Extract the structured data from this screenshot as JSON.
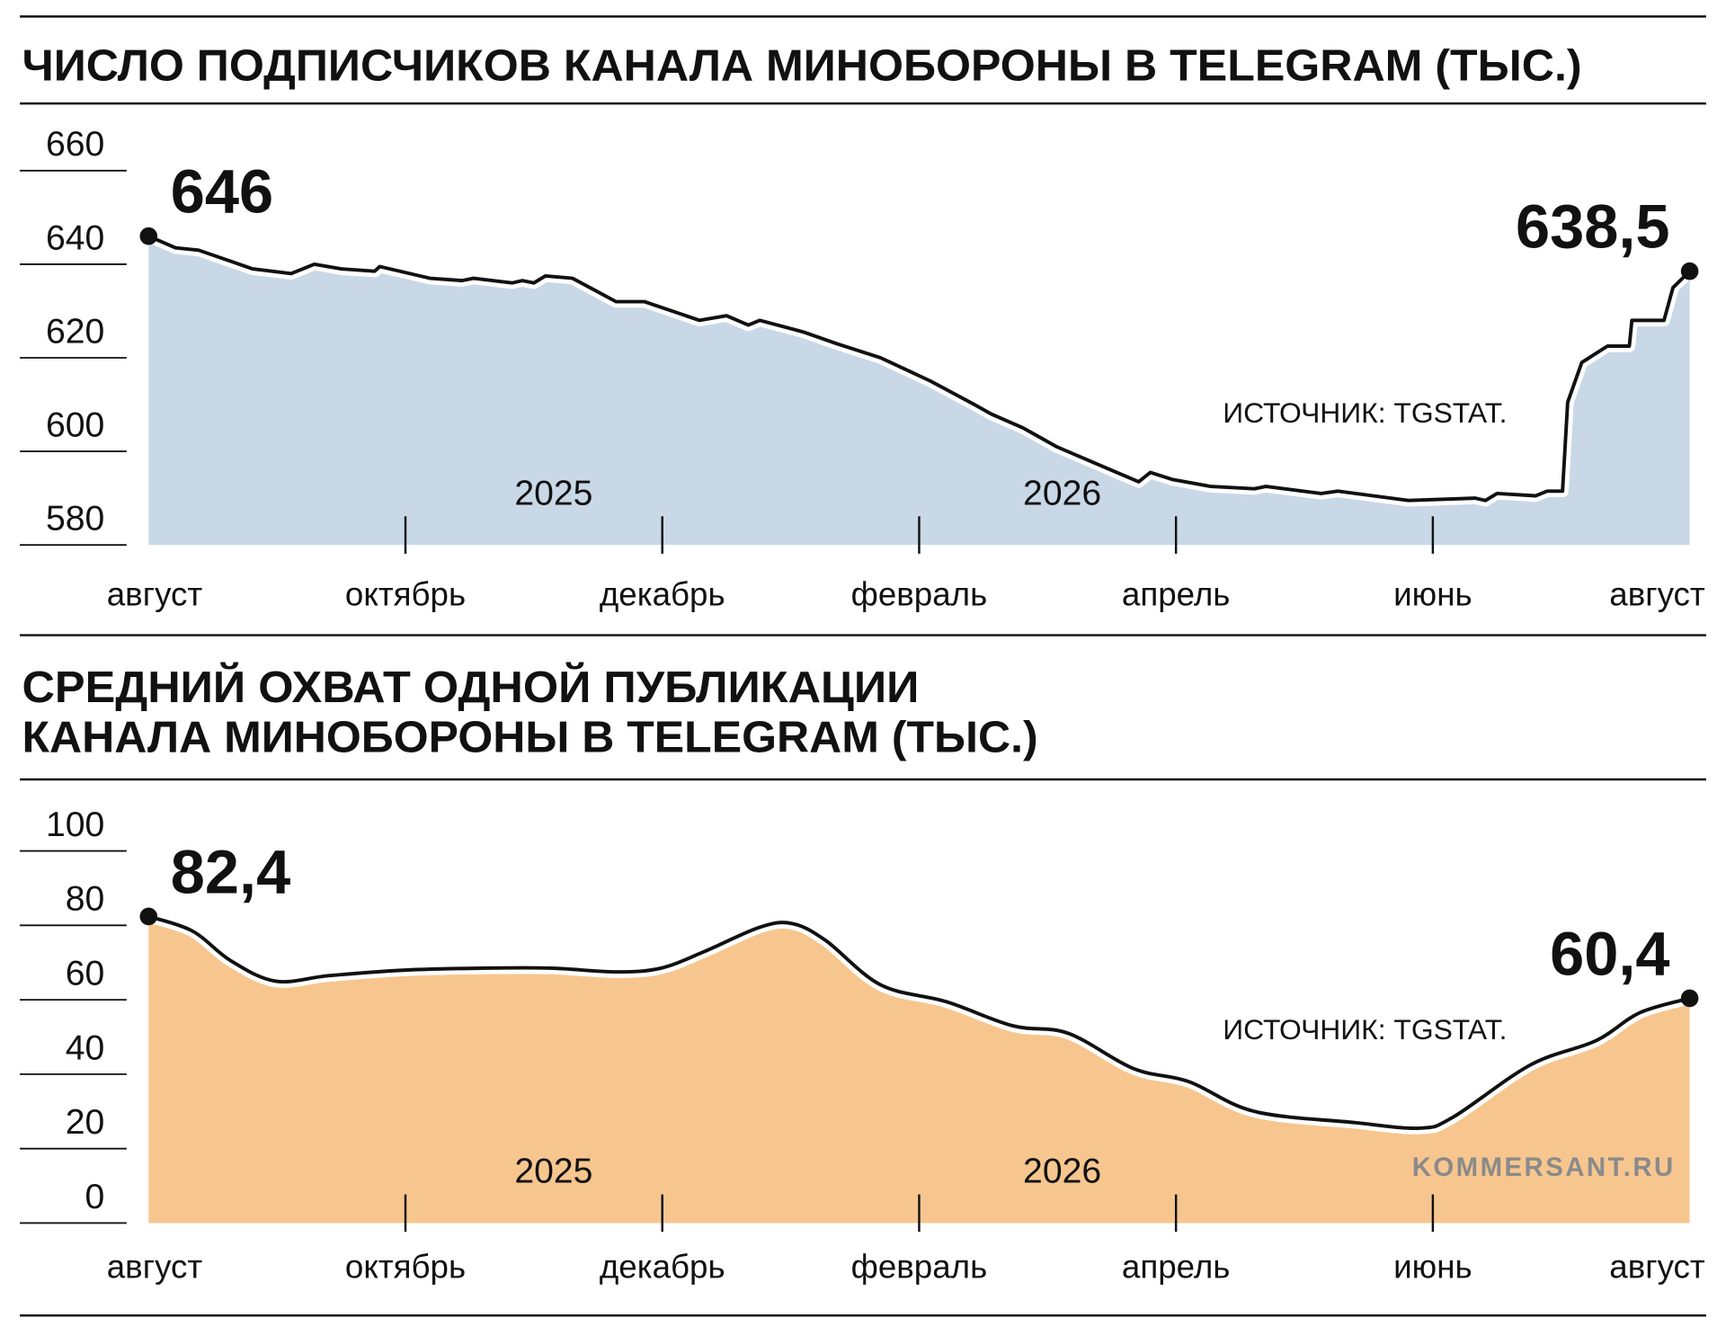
{
  "chart_data": [
    {
      "type": "area",
      "title": [
        "ЧИСЛО ПОДПИСЧИКОВ КАНАЛА МИНОБОРОНЫ В TELEGRAM (ТЫС.)"
      ],
      "x": [
        0,
        0.21,
        0.39,
        0.81,
        1.11,
        1.29,
        1.5,
        1.76,
        1.8,
        2.19,
        2.44,
        2.53,
        2.83,
        2.91,
        3.0,
        3.09,
        3.3,
        3.47,
        3.64,
        3.86,
        4.29,
        4.5,
        4.67,
        4.76,
        5.1,
        5.36,
        5.7,
        6.09,
        6.43,
        6.56,
        6.81,
        7.07,
        7.41,
        7.71,
        7.8,
        7.97,
        8.27,
        8.61,
        8.7,
        9.13,
        9.26,
        9.81,
        10.33,
        10.41,
        10.5,
        10.8,
        10.89,
        11.01,
        11.05,
        11.16,
        11.36,
        11.53,
        11.55,
        11.8,
        11.87,
        12
      ],
      "series": [
        {
          "color": "#c9d8e6",
          "line_color": "#111111",
          "values": [
            646,
            643.5,
            643,
            639,
            638,
            640,
            639,
            638.5,
            639.5,
            637,
            636.5,
            637,
            636,
            636.5,
            636,
            637.5,
            637,
            634.5,
            632,
            632,
            628,
            629,
            627,
            628,
            625.5,
            623,
            620,
            615,
            610,
            608,
            605,
            601,
            597,
            593.5,
            595.5,
            594,
            592.5,
            592,
            592.5,
            591,
            591.5,
            589.5,
            590,
            589.5,
            591,
            590.5,
            591.5,
            591.5,
            610.5,
            619,
            622.5,
            622.5,
            628,
            628,
            635,
            638.5
          ],
          "value_labels": [
            "646",
            null,
            null,
            null,
            null,
            null,
            null,
            null,
            null,
            null,
            null,
            null,
            null,
            null,
            null,
            null,
            null,
            null,
            null,
            null,
            null,
            null,
            null,
            null,
            null,
            null,
            null,
            null,
            null,
            null,
            null,
            null,
            null,
            null,
            null,
            null,
            null,
            null,
            null,
            null,
            null,
            null,
            null,
            null,
            null,
            null,
            null,
            null,
            null,
            null,
            null,
            null,
            null,
            null,
            null,
            "638,5"
          ]
        }
      ],
      "smooth": false,
      "xlim": [
        0,
        12
      ],
      "xticks": [
        {
          "value": 0,
          "label": "август"
        },
        {
          "value": 2,
          "label": "октябрь"
        },
        {
          "value": 4,
          "label": "декабрь"
        },
        {
          "value": 6,
          "label": "февраль"
        },
        {
          "value": 8,
          "label": "апрель"
        },
        {
          "value": 10,
          "label": "июнь"
        },
        {
          "value": 12,
          "label": "август"
        }
      ],
      "year_labels": [
        "2025",
        "2026"
      ],
      "ylim": [
        580,
        660
      ],
      "yticks": [
        660,
        640,
        620,
        600,
        580
      ],
      "source": "ИСТОЧНИК: TGSTAT."
    },
    {
      "type": "area",
      "title": [
        "СРЕДНИЙ ОХВАТ ОДНОЙ ПУБЛИКАЦИИ",
        "КАНАЛА МИНОБОРОНЫ В TELEGRAM (ТЫС.)"
      ],
      "x": [
        0,
        0.34,
        0.64,
        0.99,
        1.41,
        2.01,
        2.61,
        3.13,
        3.64,
        3.99,
        4.33,
        4.76,
        5.01,
        5.27,
        5.7,
        6.21,
        6.73,
        7.16,
        7.67,
        8.1,
        8.61,
        9.39,
        9.9,
        10.16,
        10.76,
        11.27,
        11.61,
        12
      ],
      "series": [
        {
          "color": "#f7c68f",
          "line_color": "#111111",
          "values": [
            82.4,
            78.5,
            70.5,
            65,
            66.5,
            68,
            68.5,
            68.5,
            67.5,
            68.5,
            73,
            79.5,
            80.5,
            76,
            64,
            59.5,
            53,
            51,
            41.5,
            38,
            30,
            27,
            25.5,
            28.5,
            42.5,
            49,
            56.5,
            60.4
          ],
          "value_labels": [
            "82,4",
            null,
            null,
            null,
            null,
            null,
            null,
            null,
            null,
            null,
            null,
            null,
            null,
            null,
            null,
            null,
            null,
            null,
            null,
            null,
            null,
            null,
            null,
            null,
            null,
            null,
            null,
            "60,4"
          ]
        }
      ],
      "smooth": true,
      "xlim": [
        0,
        12
      ],
      "xticks": [
        {
          "value": 0,
          "label": "август"
        },
        {
          "value": 2,
          "label": "октябрь"
        },
        {
          "value": 4,
          "label": "декабрь"
        },
        {
          "value": 6,
          "label": "февраль"
        },
        {
          "value": 8,
          "label": "апрель"
        },
        {
          "value": 10,
          "label": "июнь"
        },
        {
          "value": 12,
          "label": "август"
        }
      ],
      "year_labels": [
        "2025",
        "2026"
      ],
      "ylim": [
        0,
        100
      ],
      "yticks": [
        100,
        80,
        60,
        40,
        20,
        0
      ],
      "source": "ИСТОЧНИК: TGSTAT.",
      "credit": "KOMMERSANT.RU"
    }
  ]
}
